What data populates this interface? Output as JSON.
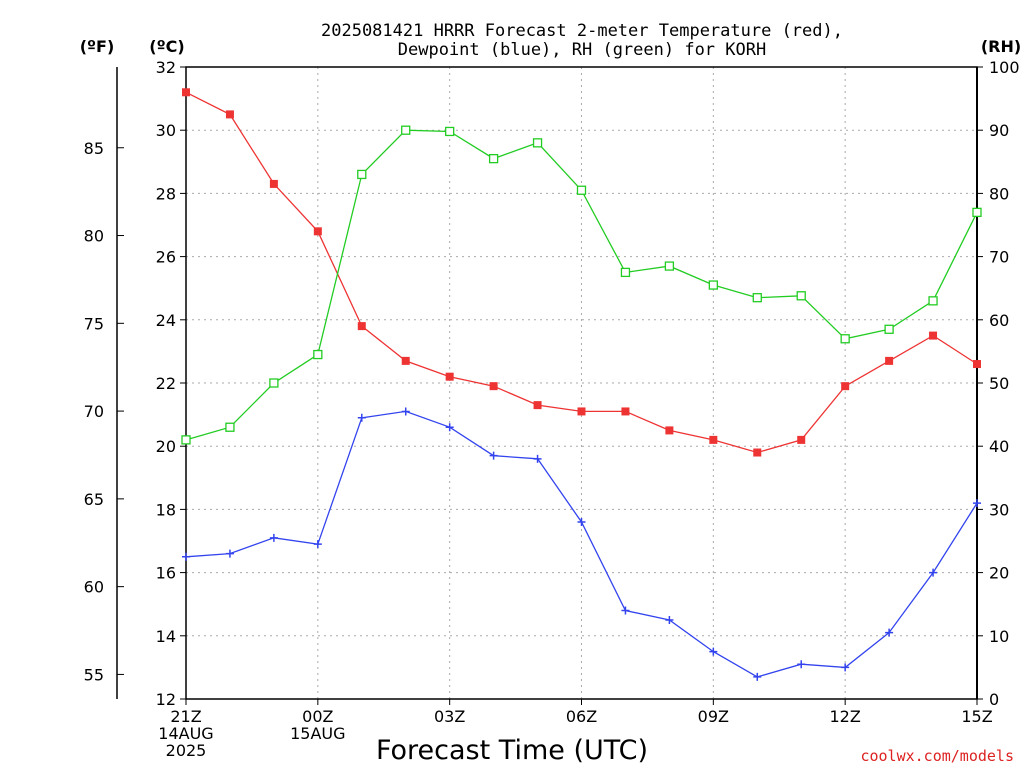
{
  "chart_data": {
    "type": "line",
    "title_line1": "2025081421 HRRR Forecast 2-meter Temperature (red),",
    "title_line2": "Dewpoint (blue), RH (green) for KORH",
    "left_outer_unit": "(ºF)",
    "left_inner_unit": "(ºC)",
    "right_unit": "(RH)",
    "xlabel": "Forecast Time (UTC)",
    "credit": "coolwx.com/models",
    "x_hours": [
      0,
      1,
      2,
      3,
      4,
      5,
      6,
      7,
      8,
      9,
      10,
      11,
      12,
      13,
      14,
      15,
      16,
      17,
      18
    ],
    "x_ticks": [
      {
        "hour": 0,
        "lines": [
          "21Z",
          "14AUG",
          "2025"
        ]
      },
      {
        "hour": 3,
        "lines": [
          "00Z",
          "15AUG"
        ]
      },
      {
        "hour": 6,
        "lines": [
          "03Z"
        ]
      },
      {
        "hour": 9,
        "lines": [
          "06Z"
        ]
      },
      {
        "hour": 12,
        "lines": [
          "09Z"
        ]
      },
      {
        "hour": 15,
        "lines": [
          "12Z"
        ]
      },
      {
        "hour": 18,
        "lines": [
          "15Z"
        ]
      }
    ],
    "celsius_range": [
      12,
      32
    ],
    "celsius_ticks": [
      12,
      14,
      16,
      18,
      20,
      22,
      24,
      26,
      28,
      30,
      32
    ],
    "fahrenheit_ticks": [
      55,
      60,
      65,
      70,
      75,
      80,
      85
    ],
    "rh_range": [
      0,
      100
    ],
    "rh_ticks": [
      0,
      10,
      20,
      30,
      40,
      50,
      60,
      70,
      80,
      90,
      100
    ],
    "grid": true,
    "series": [
      {
        "name": "Temperature (red)",
        "axis": "celsius",
        "color": "#ee3333",
        "marker": "filled-square",
        "values": [
          31.2,
          30.5,
          28.3,
          26.8,
          23.8,
          22.7,
          22.2,
          21.9,
          21.3,
          21.1,
          21.1,
          20.5,
          20.2,
          19.8,
          20.2,
          21.9,
          22.7,
          23.5,
          22.6
        ]
      },
      {
        "name": "Dewpoint (blue)",
        "axis": "celsius",
        "color": "#3344ee",
        "marker": "plus",
        "values": [
          16.5,
          16.6,
          17.1,
          16.9,
          20.9,
          21.1,
          20.6,
          19.7,
          19.6,
          17.6,
          14.8,
          14.5,
          13.5,
          12.7,
          13.1,
          13.0,
          14.1,
          16.0,
          18.2
        ]
      },
      {
        "name": "RH (green)",
        "axis": "rh",
        "color": "#22cc22",
        "marker": "open-square",
        "values": [
          41,
          43,
          50,
          54.5,
          83,
          90,
          89.8,
          85.5,
          88,
          80.5,
          67.5,
          68.5,
          65.5,
          63.5,
          63.8,
          57,
          58.5,
          63,
          77
        ]
      }
    ]
  }
}
